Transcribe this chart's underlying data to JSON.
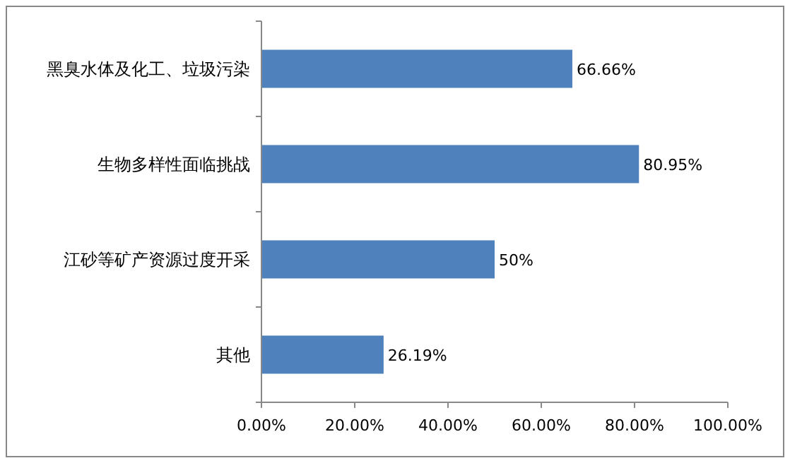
{
  "chart_data": {
    "type": "bar",
    "orientation": "horizontal",
    "categories": [
      "黑臭水体及化工、垃圾污染",
      "生物多样性面临挑战",
      "江砂等矿产资源过度开采",
      "其他"
    ],
    "values": [
      66.66,
      80.95,
      50,
      26.19
    ],
    "value_labels": [
      "66.66%",
      "80.95%",
      "50%",
      "26.19%"
    ],
    "color": "#4f81bd",
    "xlim": [
      0,
      100
    ],
    "xticks": [
      {
        "value": 0,
        "label": "0.00%"
      },
      {
        "value": 20,
        "label": "20.00%"
      },
      {
        "value": 40,
        "label": "40.00%"
      },
      {
        "value": 60,
        "label": "60.00%"
      },
      {
        "value": 80,
        "label": "80.00%"
      },
      {
        "value": 100,
        "label": "100.00%"
      }
    ]
  }
}
